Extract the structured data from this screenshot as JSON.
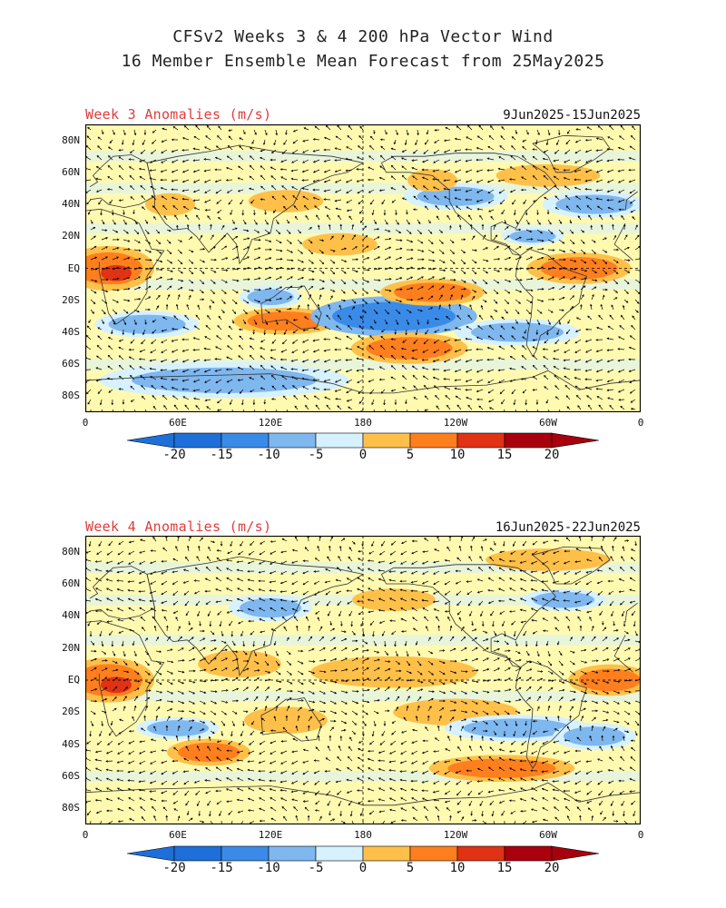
{
  "title_line1": "CFSv2 Weeks 3 & 4 200 hPa Vector Wind",
  "title_line2": "16 Member Ensemble Mean Forecast from 25May2025",
  "colors": {
    "label": "#e03c3c",
    "levels": [
      "#1e6fd9",
      "#3a8be8",
      "#7fb7ef",
      "#d6f1ff",
      "#fffab0",
      "#ffc04a",
      "#ff7f1e",
      "#e03214",
      "#a8000c"
    ],
    "neutral": "#d6f1ff",
    "land": "#333333"
  },
  "lat_labels": [
    "80N",
    "60N",
    "40N",
    "20N",
    "EQ",
    "20S",
    "40S",
    "60S",
    "80S"
  ],
  "lon_labels": [
    "0",
    "60E",
    "120E",
    "180",
    "120W",
    "60W",
    "0"
  ],
  "colorbar_labels": [
    "-20",
    "-15",
    "-10",
    "-5",
    "0",
    "5",
    "10",
    "15",
    "20"
  ],
  "panels": [
    {
      "label": "Week 3 Anomalies (m/s)",
      "dates": "9Jun2025-15Jun2025",
      "anomalies": [
        {
          "lon": 15,
          "lat": 0,
          "rlon": 22,
          "rlat": 10,
          "v": 12
        },
        {
          "lon": 20,
          "lat": -3,
          "rlon": 10,
          "rlat": 5,
          "v": 16
        },
        {
          "lon": 40,
          "lat": -35,
          "rlon": 25,
          "rlat": 6,
          "v": -8
        },
        {
          "lon": 130,
          "lat": -33,
          "rlon": 25,
          "rlat": 6,
          "v": 12
        },
        {
          "lon": 120,
          "lat": -18,
          "rlon": 15,
          "rlat": 5,
          "v": -7
        },
        {
          "lon": 200,
          "lat": -30,
          "rlon": 40,
          "rlat": 9,
          "v": -13
        },
        {
          "lon": 210,
          "lat": -50,
          "rlon": 28,
          "rlat": 7,
          "v": 12
        },
        {
          "lon": 225,
          "lat": -15,
          "rlon": 25,
          "rlat": 6,
          "v": 12
        },
        {
          "lon": 320,
          "lat": 0,
          "rlon": 25,
          "rlat": 7,
          "v": 12
        },
        {
          "lon": 280,
          "lat": -40,
          "rlon": 30,
          "rlat": 6,
          "v": -8
        },
        {
          "lon": 240,
          "lat": 45,
          "rlon": 25,
          "rlat": 6,
          "v": -8
        },
        {
          "lon": 225,
          "lat": 55,
          "rlon": 12,
          "rlat": 5,
          "v": 8
        },
        {
          "lon": 300,
          "lat": 58,
          "rlon": 25,
          "rlat": 5,
          "v": 8
        },
        {
          "lon": 130,
          "lat": 42,
          "rlon": 18,
          "rlat": 5,
          "v": 8
        },
        {
          "lon": 55,
          "lat": 40,
          "rlon": 12,
          "rlat": 5,
          "v": 8
        },
        {
          "lon": 165,
          "lat": 15,
          "rlon": 18,
          "rlat": 5,
          "v": 7
        },
        {
          "lon": 90,
          "lat": -70,
          "rlon": 60,
          "rlat": 8,
          "v": -7
        },
        {
          "lon": 330,
          "lat": 40,
          "rlon": 25,
          "rlat": 6,
          "v": -7
        },
        {
          "lon": 290,
          "lat": 20,
          "rlon": 15,
          "rlat": 4,
          "v": -7
        }
      ]
    },
    {
      "label": "Week 4 Anomalies (m/s)",
      "dates": "16Jun2025-22Jun2025",
      "anomalies": [
        {
          "lon": 15,
          "lat": 0,
          "rlon": 22,
          "rlat": 10,
          "v": 12
        },
        {
          "lon": 20,
          "lat": -3,
          "rlon": 10,
          "rlat": 5,
          "v": 16
        },
        {
          "lon": 80,
          "lat": -45,
          "rlon": 20,
          "rlat": 6,
          "v": 12
        },
        {
          "lon": 130,
          "lat": -25,
          "rlon": 20,
          "rlat": 6,
          "v": 8
        },
        {
          "lon": 200,
          "lat": 5,
          "rlon": 40,
          "rlat": 7,
          "v": 8
        },
        {
          "lon": 240,
          "lat": -20,
          "rlon": 30,
          "rlat": 6,
          "v": 8
        },
        {
          "lon": 280,
          "lat": -30,
          "rlon": 35,
          "rlat": 6,
          "v": -8
        },
        {
          "lon": 270,
          "lat": -55,
          "rlon": 35,
          "rlat": 6,
          "v": 12
        },
        {
          "lon": 340,
          "lat": 0,
          "rlon": 20,
          "rlat": 7,
          "v": 14
        },
        {
          "lon": 330,
          "lat": -35,
          "rlon": 20,
          "rlat": 6,
          "v": -8
        },
        {
          "lon": 60,
          "lat": -30,
          "rlon": 20,
          "rlat": 5,
          "v": -7
        },
        {
          "lon": 120,
          "lat": 45,
          "rlon": 20,
          "rlat": 6,
          "v": -7
        },
        {
          "lon": 100,
          "lat": 10,
          "rlon": 20,
          "rlat": 6,
          "v": 7
        },
        {
          "lon": 200,
          "lat": 50,
          "rlon": 20,
          "rlat": 5,
          "v": 7
        },
        {
          "lon": 310,
          "lat": 50,
          "rlon": 20,
          "rlat": 5,
          "v": -7
        },
        {
          "lon": 300,
          "lat": 75,
          "rlon": 30,
          "rlat": 5,
          "v": 7
        }
      ]
    }
  ]
}
